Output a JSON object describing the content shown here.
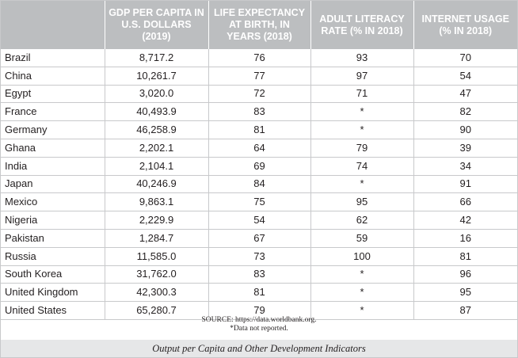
{
  "table": {
    "headers": [
      "",
      "GDP PER CAPITA IN U.S. DOLLARS (2019)",
      "LIFE EXPECTANCY AT BIRTH, IN YEARS (2018)",
      "ADULT LITERACY RATE (% IN 2018)",
      "INTERNET USAGE (% IN 2018)"
    ],
    "rows": [
      [
        "Brazil",
        "8,717.2",
        "76",
        "93",
        "70"
      ],
      [
        "China",
        "10,261.7",
        "77",
        "97",
        "54"
      ],
      [
        "Egypt",
        "3,020.0",
        "72",
        "71",
        "47"
      ],
      [
        "France",
        "40,493.9",
        "83",
        "*",
        "82"
      ],
      [
        "Germany",
        "46,258.9",
        "81",
        "*",
        "90"
      ],
      [
        "Ghana",
        "2,202.1",
        "64",
        "79",
        "39"
      ],
      [
        "India",
        "2,104.1",
        "69",
        "74",
        "34"
      ],
      [
        "Japan",
        "40,246.9",
        "84",
        "*",
        "91"
      ],
      [
        "Mexico",
        "9,863.1",
        "75",
        "95",
        "66"
      ],
      [
        "Nigeria",
        "2,229.9",
        "54",
        "62",
        "42"
      ],
      [
        "Pakistan",
        "1,284.7",
        "67",
        "59",
        "16"
      ],
      [
        "Russia",
        "11,585.0",
        "73",
        "100",
        "81"
      ],
      [
        "South Korea",
        "31,762.0",
        "83",
        "*",
        "96"
      ],
      [
        "United Kingdom",
        "42,300.3",
        "81",
        "*",
        "95"
      ],
      [
        "United States",
        "65,280.7",
        "79",
        "*",
        "87"
      ]
    ]
  },
  "source_note": "SOURCE: https://data.worldbank.org.",
  "footnote": "*Data not reported.",
  "caption": "Output per Capita and Other Development Indicators",
  "colors": {
    "header_bg": "#bcbec0",
    "caption_bg": "#e6e7e8"
  }
}
